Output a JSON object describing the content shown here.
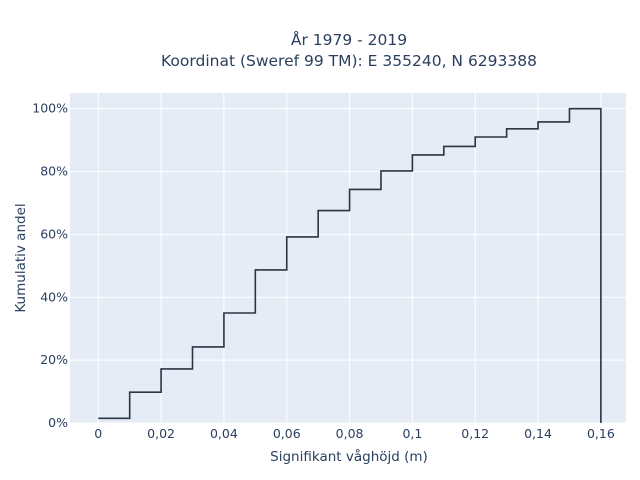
{
  "chart_data": {
    "type": "line",
    "line_shape": "step (cumulative histogram)",
    "title_line1": "År 1979 - 2019",
    "title_line2": "Koordinat (Sweref 99 TM): E 355240, N 6293388",
    "xlabel": "Signifikant våghöjd (m)",
    "ylabel": "Kumulativ andel",
    "xlim": [
      -0.009,
      0.168
    ],
    "ylim": [
      0,
      1.05
    ],
    "x_ticks": [
      0,
      0.02,
      0.04,
      0.06,
      0.08,
      0.1,
      0.12,
      0.14,
      0.16
    ],
    "x_tick_labels": [
      "0",
      "0,02",
      "0,04",
      "0,06",
      "0,08",
      "0,1",
      "0,12",
      "0,14",
      "0,16"
    ],
    "y_ticks": [
      0,
      0.2,
      0.4,
      0.6,
      0.8,
      1.0
    ],
    "y_tick_labels": [
      "0%",
      "20%",
      "40%",
      "60%",
      "80%",
      "100%"
    ],
    "bin_edges": [
      0,
      0.01,
      0.02,
      0.03,
      0.04,
      0.05,
      0.06,
      0.07,
      0.08,
      0.09,
      0.1,
      0.11,
      0.12,
      0.13,
      0.14,
      0.15,
      0.16
    ],
    "values": [
      0.015,
      0.098,
      0.172,
      0.242,
      0.35,
      0.487,
      0.592,
      0.676,
      0.743,
      0.802,
      0.853,
      0.88,
      0.91,
      0.936,
      0.958,
      1.0
    ],
    "grid": true,
    "colors": {
      "plot_bg": "#e5ecf6",
      "grid": "#ffffff",
      "line": "#2a3444",
      "text": "#2a3f5f"
    }
  }
}
